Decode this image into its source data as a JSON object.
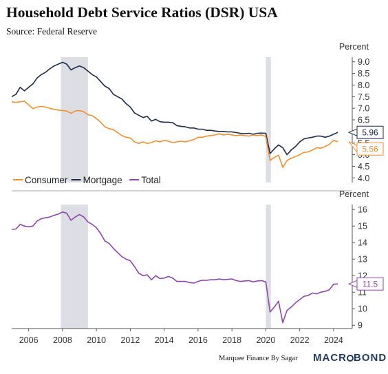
{
  "title": "Household Debt Service Ratios (DSR) USA",
  "subtitle": "Source: Federal Reserve",
  "footer": {
    "credit": "Marquee Finance By Sagar",
    "logo": "MACROBOND"
  },
  "colors": {
    "consumer": "#f28e2b",
    "mortgage": "#1b2a4a",
    "total": "#8e44ad",
    "shade": "#dcdee4"
  },
  "chart_data": [
    {
      "type": "line",
      "unit": "Percent",
      "x_range": [
        2005,
        2025.1
      ],
      "ylim": [
        3.8,
        9.2
      ],
      "yticks": [
        4.0,
        4.5,
        5.0,
        5.5,
        6.0,
        6.5,
        7.0,
        7.5,
        8.0,
        8.5,
        9.0
      ],
      "ytick_labels": [
        "4.0",
        "4.5",
        "5.0",
        "5.5",
        "6.0",
        "6.5",
        "7.0",
        "7.5",
        "8.0",
        "8.5",
        "9.0"
      ],
      "shaded_periods": [
        [
          2007.9,
          2009.5
        ],
        [
          2020.0,
          2020.3
        ]
      ],
      "legend": {
        "placement": "bottom-left",
        "entries": [
          "Consumer",
          "Mortgage",
          "Total"
        ]
      },
      "end_labels": [
        {
          "series": "Mortgage",
          "value": 5.96,
          "label": "5.96"
        },
        {
          "series": "Consumer",
          "value": 5.56,
          "label": "5.56"
        }
      ],
      "series": [
        {
          "name": "Mortgage",
          "x": [
            2005.0,
            2005.25,
            2005.5,
            2005.75,
            2006.0,
            2006.25,
            2006.5,
            2006.75,
            2007.0,
            2007.25,
            2007.5,
            2007.75,
            2008.0,
            2008.25,
            2008.5,
            2008.75,
            2009.0,
            2009.25,
            2009.5,
            2009.75,
            2010.0,
            2010.25,
            2010.5,
            2010.75,
            2011.0,
            2011.25,
            2011.5,
            2011.75,
            2012.0,
            2012.25,
            2012.5,
            2012.75,
            2013.0,
            2013.25,
            2013.5,
            2013.75,
            2014.0,
            2014.25,
            2014.5,
            2014.75,
            2015.0,
            2015.25,
            2015.5,
            2015.75,
            2016.0,
            2016.25,
            2016.5,
            2016.75,
            2017.0,
            2017.25,
            2017.5,
            2017.75,
            2018.0,
            2018.25,
            2018.5,
            2018.75,
            2019.0,
            2019.25,
            2019.5,
            2019.75,
            2020.0,
            2020.25,
            2020.5,
            2020.75,
            2021.0,
            2021.25,
            2021.5,
            2021.75,
            2022.0,
            2022.25,
            2022.5,
            2022.75,
            2023.0,
            2023.25,
            2023.5,
            2023.75,
            2024.0,
            2024.25
          ],
          "values": [
            7.5,
            7.6,
            7.9,
            7.75,
            7.9,
            8.05,
            8.3,
            8.45,
            8.55,
            8.7,
            8.82,
            8.9,
            8.98,
            8.9,
            8.65,
            8.75,
            8.82,
            8.75,
            8.6,
            8.45,
            8.35,
            8.15,
            7.95,
            7.85,
            7.6,
            7.5,
            7.4,
            7.2,
            7.05,
            6.8,
            6.7,
            6.6,
            6.65,
            6.45,
            6.52,
            6.42,
            6.4,
            6.4,
            6.38,
            6.25,
            6.22,
            6.2,
            6.15,
            6.15,
            6.1,
            6.1,
            6.05,
            6.05,
            6.02,
            6.0,
            6.0,
            5.98,
            5.98,
            5.95,
            5.92,
            5.9,
            5.92,
            5.88,
            5.92,
            5.93,
            5.92,
            5.05,
            5.25,
            5.42,
            5.3,
            5.0,
            5.2,
            5.35,
            5.55,
            5.68,
            5.72,
            5.75,
            5.8,
            5.8,
            5.75,
            5.8,
            5.88,
            5.96
          ]
        },
        {
          "name": "Consumer",
          "x": [
            2005.0,
            2005.25,
            2005.5,
            2005.75,
            2006.0,
            2006.25,
            2006.5,
            2006.75,
            2007.0,
            2007.25,
            2007.5,
            2007.75,
            2008.0,
            2008.25,
            2008.5,
            2008.75,
            2009.0,
            2009.25,
            2009.5,
            2009.75,
            2010.0,
            2010.25,
            2010.5,
            2010.75,
            2011.0,
            2011.25,
            2011.5,
            2011.75,
            2012.0,
            2012.25,
            2012.5,
            2012.75,
            2013.0,
            2013.25,
            2013.5,
            2013.75,
            2014.0,
            2014.25,
            2014.5,
            2014.75,
            2015.0,
            2015.25,
            2015.5,
            2015.75,
            2016.0,
            2016.25,
            2016.5,
            2016.75,
            2017.0,
            2017.25,
            2017.5,
            2017.75,
            2018.0,
            2018.25,
            2018.5,
            2018.75,
            2019.0,
            2019.25,
            2019.5,
            2019.75,
            2020.0,
            2020.25,
            2020.5,
            2020.75,
            2021.0,
            2021.25,
            2021.5,
            2021.75,
            2022.0,
            2022.25,
            2022.5,
            2022.75,
            2023.0,
            2023.25,
            2023.5,
            2023.75,
            2024.0,
            2024.25
          ],
          "values": [
            7.28,
            7.25,
            7.28,
            7.3,
            7.15,
            6.98,
            7.05,
            7.08,
            7.05,
            7.0,
            6.95,
            6.92,
            6.9,
            6.88,
            6.78,
            6.88,
            6.9,
            6.85,
            6.72,
            6.68,
            6.55,
            6.4,
            6.2,
            6.12,
            6.08,
            5.95,
            5.82,
            5.75,
            5.72,
            5.55,
            5.48,
            5.55,
            5.48,
            5.52,
            5.6,
            5.55,
            5.62,
            5.58,
            5.52,
            5.55,
            5.58,
            5.55,
            5.6,
            5.65,
            5.75,
            5.75,
            5.8,
            5.82,
            5.85,
            5.9,
            5.85,
            5.88,
            5.85,
            5.82,
            5.85,
            5.82,
            5.8,
            5.85,
            5.82,
            5.85,
            5.78,
            4.75,
            4.88,
            4.98,
            4.45,
            4.75,
            4.85,
            4.92,
            5.0,
            5.1,
            5.12,
            5.2,
            5.3,
            5.28,
            5.35,
            5.45,
            5.62,
            5.56
          ]
        }
      ]
    },
    {
      "type": "line",
      "unit": "Percent",
      "x_range": [
        2005,
        2025.1
      ],
      "ylim": [
        8.8,
        16.3
      ],
      "yticks": [
        9,
        10,
        11,
        12,
        13,
        14,
        15,
        16
      ],
      "ytick_labels": [
        "9",
        "10",
        "11",
        "12",
        "13",
        "14",
        "15",
        "16"
      ],
      "xticks": [
        2006,
        2008,
        2010,
        2012,
        2014,
        2016,
        2018,
        2020,
        2022,
        2024
      ],
      "xtick_labels": [
        "2006",
        "2008",
        "2010",
        "2012",
        "2014",
        "2016",
        "2018",
        "2020",
        "2022",
        "2024"
      ],
      "shaded_periods": [
        [
          2007.9,
          2009.5
        ],
        [
          2020.0,
          2020.3
        ]
      ],
      "end_labels": [
        {
          "series": "Total",
          "value": 11.5,
          "label": "11.5"
        }
      ],
      "series": [
        {
          "name": "Total",
          "x": [
            2005.0,
            2005.25,
            2005.5,
            2005.75,
            2006.0,
            2006.25,
            2006.5,
            2006.75,
            2007.0,
            2007.25,
            2007.5,
            2007.75,
            2008.0,
            2008.25,
            2008.5,
            2008.75,
            2009.0,
            2009.25,
            2009.5,
            2009.75,
            2010.0,
            2010.25,
            2010.5,
            2010.75,
            2011.0,
            2011.25,
            2011.5,
            2011.75,
            2012.0,
            2012.25,
            2012.5,
            2012.75,
            2013.0,
            2013.25,
            2013.5,
            2013.75,
            2014.0,
            2014.25,
            2014.5,
            2014.75,
            2015.0,
            2015.25,
            2015.5,
            2015.75,
            2016.0,
            2016.25,
            2016.5,
            2016.75,
            2017.0,
            2017.25,
            2017.5,
            2017.75,
            2018.0,
            2018.25,
            2018.5,
            2018.75,
            2019.0,
            2019.25,
            2019.5,
            2019.75,
            2020.0,
            2020.25,
            2020.5,
            2020.75,
            2021.0,
            2021.25,
            2021.5,
            2021.75,
            2022.0,
            2022.25,
            2022.5,
            2022.75,
            2023.0,
            2023.25,
            2023.5,
            2023.75,
            2024.0,
            2024.25
          ],
          "values": [
            14.8,
            14.82,
            15.1,
            15.0,
            14.95,
            15.0,
            15.3,
            15.45,
            15.5,
            15.55,
            15.65,
            15.72,
            15.85,
            15.78,
            15.35,
            15.55,
            15.7,
            15.55,
            15.25,
            15.1,
            14.9,
            14.55,
            14.1,
            13.95,
            13.65,
            13.4,
            13.15,
            13.0,
            12.9,
            12.55,
            12.15,
            12.0,
            12.05,
            11.75,
            12.0,
            11.82,
            11.85,
            11.95,
            11.85,
            11.65,
            11.65,
            11.65,
            11.58,
            11.55,
            11.65,
            11.72,
            11.72,
            11.75,
            11.75,
            11.8,
            11.75,
            11.78,
            11.8,
            11.7,
            11.65,
            11.68,
            11.7,
            11.62,
            11.68,
            11.7,
            11.62,
            9.8,
            10.1,
            10.45,
            9.15,
            9.9,
            10.1,
            10.35,
            10.55,
            10.75,
            10.8,
            10.95,
            10.9,
            11.0,
            11.05,
            11.15,
            11.48,
            11.5
          ]
        }
      ]
    }
  ]
}
